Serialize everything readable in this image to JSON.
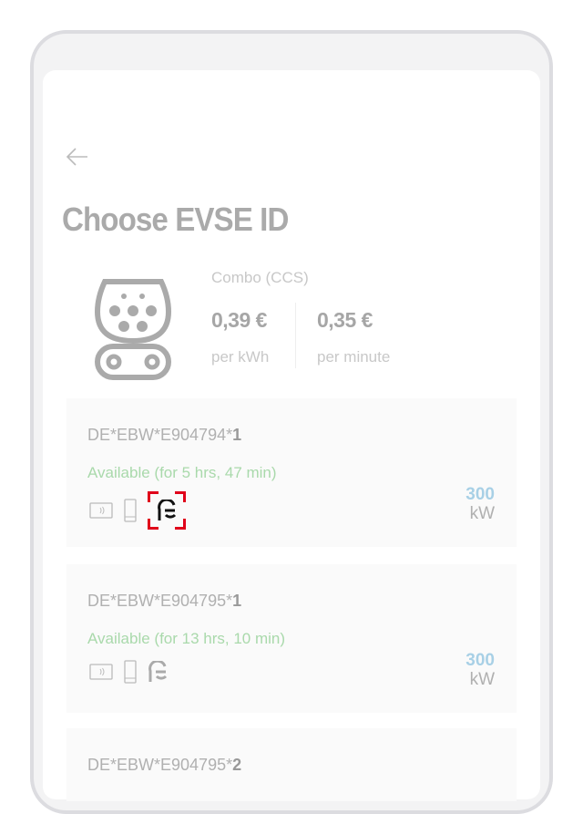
{
  "header": {
    "back_icon": "arrow-left-icon",
    "title": "Choose EVSE ID"
  },
  "connector": {
    "icon": "ccs-combo-plug-icon",
    "type": "Combo (CCS)",
    "price_kwh": "0,39 €",
    "unit_kwh": "per kWh",
    "price_min": "0,35 €",
    "unit_min": "per minute"
  },
  "colors": {
    "available": "#a9d9ab",
    "power": "#a8d0e6",
    "selected_frame": "#e0001a"
  },
  "evses": [
    {
      "id_prefix": "DE*EBW*E904794*",
      "id_suffix": "1",
      "status": "Available (for 5 hrs, 47 min)",
      "power": "300",
      "power_unit": "kW",
      "plug_and_charge_selected": true
    },
    {
      "id_prefix": "DE*EBW*E904795*",
      "id_suffix": "1",
      "status": "Available (for 13 hrs, 10 min)",
      "power": "300",
      "power_unit": "kW",
      "plug_and_charge_selected": false
    },
    {
      "id_prefix": "DE*EBW*E904795*",
      "id_suffix": "2"
    }
  ]
}
